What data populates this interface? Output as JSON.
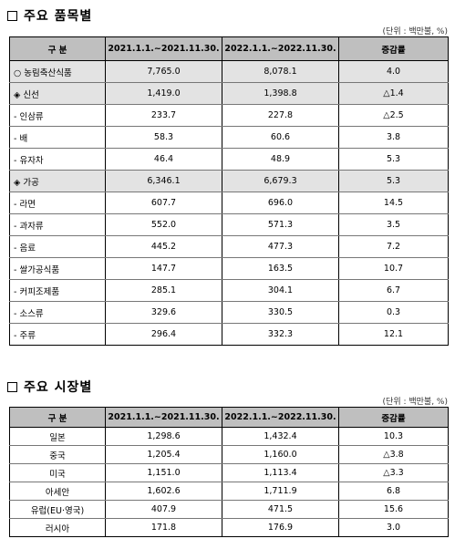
{
  "section1": {
    "title": "주요 품목별",
    "unit": "(단위 : 백만불, %)",
    "headers": [
      "구 분",
      "2021.1.1.~2021.11.30.",
      "2022.1.1.~2022.11.30.",
      "증감률"
    ],
    "rows": [
      {
        "label": "○ 농림축산식품",
        "a": "7,765.0",
        "b": "8,078.1",
        "c": "4.0",
        "shade": true
      },
      {
        "label": "◈ 신선",
        "a": "1,419.0",
        "b": "1,398.8",
        "c": "△1.4",
        "shade": true
      },
      {
        "label": "- 인삼류",
        "a": "233.7",
        "b": "227.8",
        "c": "△2.5",
        "shade": false
      },
      {
        "label": "- 배",
        "a": "58.3",
        "b": "60.6",
        "c": "3.8",
        "shade": false
      },
      {
        "label": "- 유자차",
        "a": "46.4",
        "b": "48.9",
        "c": "5.3",
        "shade": false
      },
      {
        "label": "◈ 가공",
        "a": "6,346.1",
        "b": "6,679.3",
        "c": "5.3",
        "shade": true
      },
      {
        "label": "- 라면",
        "a": "607.7",
        "b": "696.0",
        "c": "14.5",
        "shade": false
      },
      {
        "label": "- 과자류",
        "a": "552.0",
        "b": "571.3",
        "c": "3.5",
        "shade": false
      },
      {
        "label": "- 음료",
        "a": "445.2",
        "b": "477.3",
        "c": "7.2",
        "shade": false
      },
      {
        "label": "- 쌀가공식품",
        "a": "147.7",
        "b": "163.5",
        "c": "10.7",
        "shade": false
      },
      {
        "label": "- 커피조제품",
        "a": "285.1",
        "b": "304.1",
        "c": "6.7",
        "shade": false
      },
      {
        "label": "- 소스류",
        "a": "329.6",
        "b": "330.5",
        "c": "0.3",
        "shade": false
      },
      {
        "label": "- 주류",
        "a": "296.4",
        "b": "332.3",
        "c": "12.1",
        "shade": false
      }
    ]
  },
  "section2": {
    "title": "주요 시장별",
    "unit": "(단위 : 백만불, %)",
    "headers": [
      "구 분",
      "2021.1.1.~2021.11.30.",
      "2022.1.1.~2022.11.30.",
      "증감률"
    ],
    "rows": [
      {
        "label": "일본",
        "a": "1,298.6",
        "b": "1,432.4",
        "c": "10.3"
      },
      {
        "label": "중국",
        "a": "1,205.4",
        "b": "1,160.0",
        "c": "△3.8"
      },
      {
        "label": "미국",
        "a": "1,151.0",
        "b": "1,113.4",
        "c": "△3.3"
      },
      {
        "label": "아세안",
        "a": "1,602.6",
        "b": "1,711.9",
        "c": "6.8"
      },
      {
        "label": "유럽(EU·영국)",
        "a": "407.9",
        "b": "471.5",
        "c": "15.6"
      },
      {
        "label": "러시아",
        "a": "171.8",
        "b": "176.9",
        "c": "3.0"
      }
    ]
  }
}
